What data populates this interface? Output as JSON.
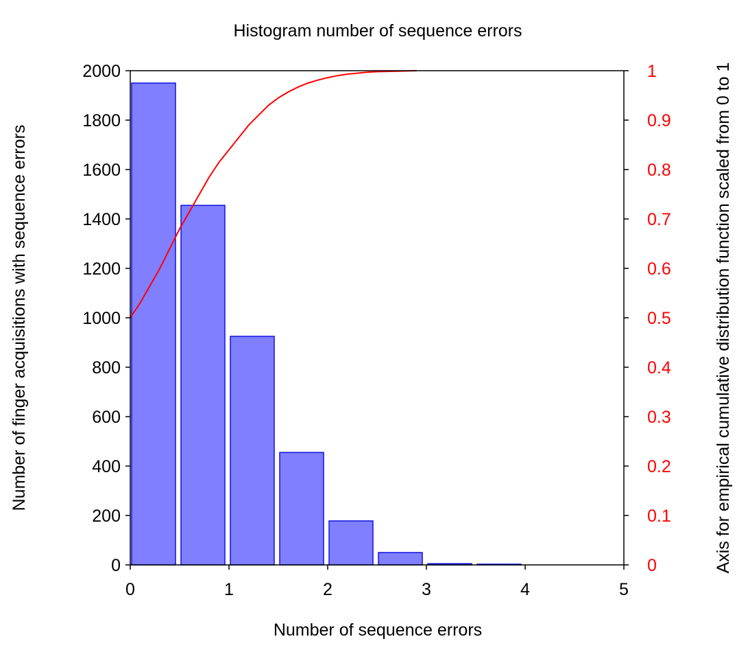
{
  "chart_data": {
    "type": "bar",
    "title": "Histogram number of sequence errors",
    "xlabel": "Number of sequence errors",
    "ylabel": "Number of finger acquisitions with sequence errors",
    "y2label": "Axis for empirical cumulative distribution function scaled from 0 to 1",
    "xlim": [
      0,
      5
    ],
    "ylim": [
      0,
      2000
    ],
    "y2lim": [
      0,
      1
    ],
    "x_ticks": [
      "0",
      "1",
      "2",
      "3",
      "4",
      "5"
    ],
    "y_ticks": [
      "0",
      "200",
      "400",
      "600",
      "800",
      "1000",
      "1200",
      "1400",
      "1600",
      "1800",
      "2000"
    ],
    "y2_ticks": [
      "0",
      "0.1",
      "0.2",
      "0.3",
      "0.4",
      "0.5",
      "0.6",
      "0.7",
      "0.8",
      "0.9",
      "1"
    ],
    "bin_width": 0.5,
    "bins": [
      {
        "start": 0.0,
        "value": 1950
      },
      {
        "start": 0.5,
        "value": 1455
      },
      {
        "start": 1.0,
        "value": 925
      },
      {
        "start": 1.5,
        "value": 455
      },
      {
        "start": 2.0,
        "value": 178
      },
      {
        "start": 2.5,
        "value": 50
      },
      {
        "start": 3.0,
        "value": 5
      },
      {
        "start": 3.5,
        "value": 3
      }
    ],
    "ecdf": {
      "x": [
        0,
        0.05,
        0.1,
        0.2,
        0.3,
        0.4,
        0.5,
        0.6,
        0.7,
        0.8,
        0.9,
        1.0,
        1.1,
        1.2,
        1.3,
        1.4,
        1.5,
        1.6,
        1.7,
        1.8,
        1.9,
        2.0,
        2.1,
        2.2,
        2.3,
        2.4,
        2.5,
        2.6,
        2.7,
        2.8,
        2.9
      ],
      "y": [
        0.5,
        0.515,
        0.53,
        0.565,
        0.6,
        0.64,
        0.68,
        0.715,
        0.75,
        0.785,
        0.815,
        0.84,
        0.865,
        0.89,
        0.91,
        0.93,
        0.945,
        0.957,
        0.967,
        0.975,
        0.981,
        0.986,
        0.99,
        0.993,
        0.995,
        0.997,
        0.998,
        0.9985,
        0.999,
        0.9995,
        1.0
      ]
    },
    "colors": {
      "bar_fill": "#7f7fff",
      "bar_stroke": "#1010e0",
      "ecdf_line": "#ff0000",
      "right_axis_text": "#ff0000"
    },
    "grid": false,
    "legend": "none"
  }
}
